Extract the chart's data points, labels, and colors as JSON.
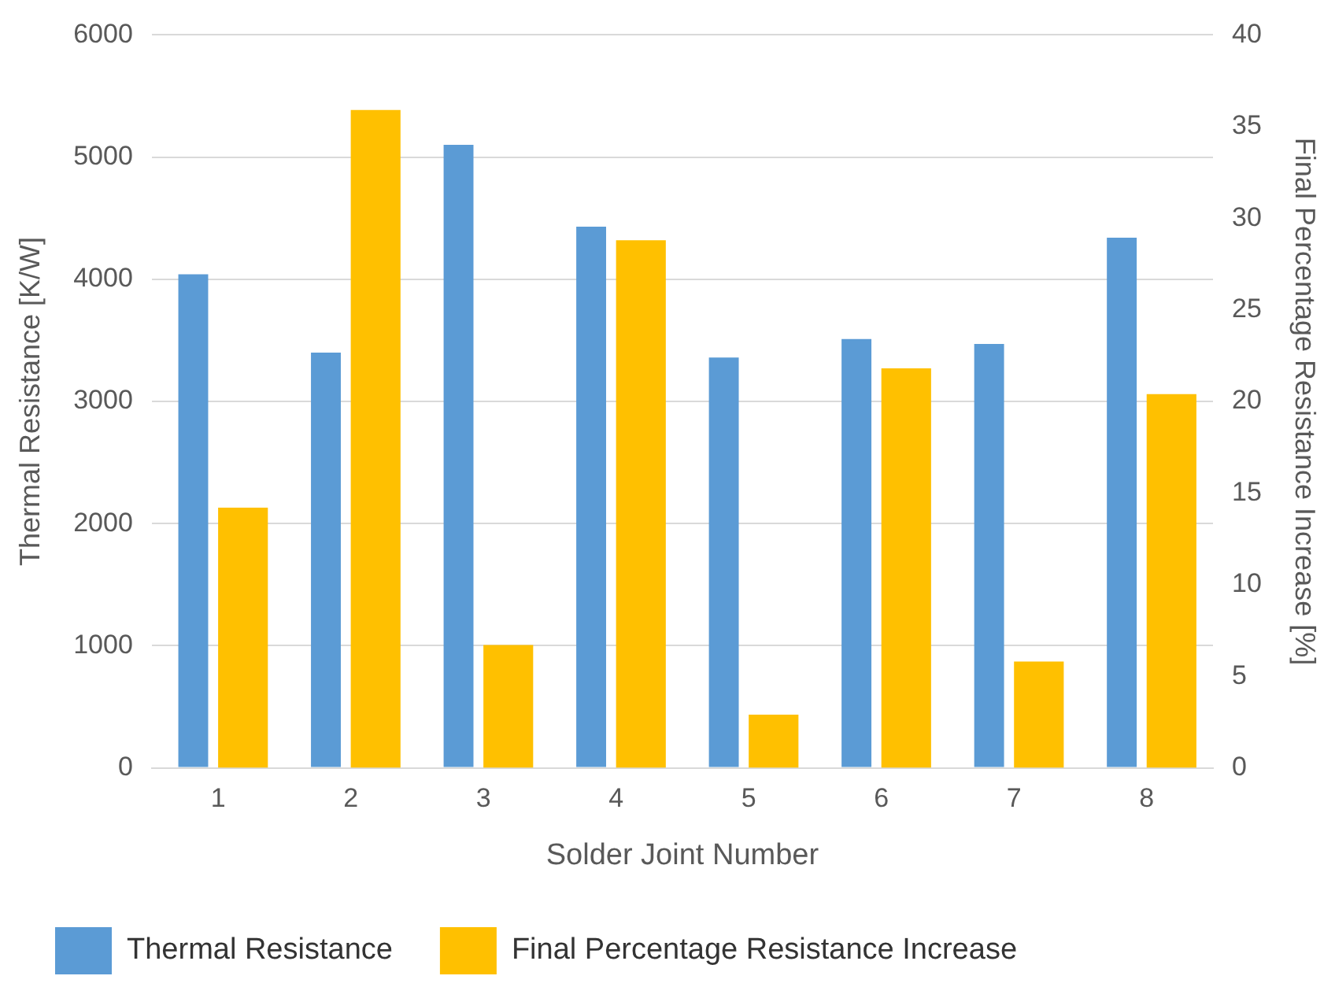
{
  "chart_data": {
    "type": "bar",
    "xlabel": "Solder Joint Number",
    "ylabel": "Thermal Resistance [K/W]",
    "y2label": "Final Percentage Resistance Increase [%]",
    "categories": [
      "1",
      "2",
      "3",
      "4",
      "5",
      "6",
      "7",
      "8"
    ],
    "series": [
      {
        "name": "Thermal Resistance",
        "color": "#5b9bd5",
        "values": [
          4040,
          3400,
          5100,
          4430,
          3360,
          3510,
          3470,
          4340
        ]
      },
      {
        "name": "Final Percentage Resistance Increase",
        "color": "#ffc000",
        "axis": "y2",
        "values": [
          14.2,
          35.9,
          6.7,
          28.8,
          2.9,
          21.8,
          5.8,
          20.4
        ]
      }
    ],
    "ylim": [
      0,
      6000
    ],
    "yticks": [
      0,
      1000,
      2000,
      3000,
      4000,
      5000,
      6000
    ],
    "y2lim": [
      0,
      40
    ],
    "y2ticks": [
      0,
      5,
      10,
      15,
      20,
      25,
      30,
      35,
      40
    ],
    "grid": "y",
    "legend": "bottom"
  }
}
